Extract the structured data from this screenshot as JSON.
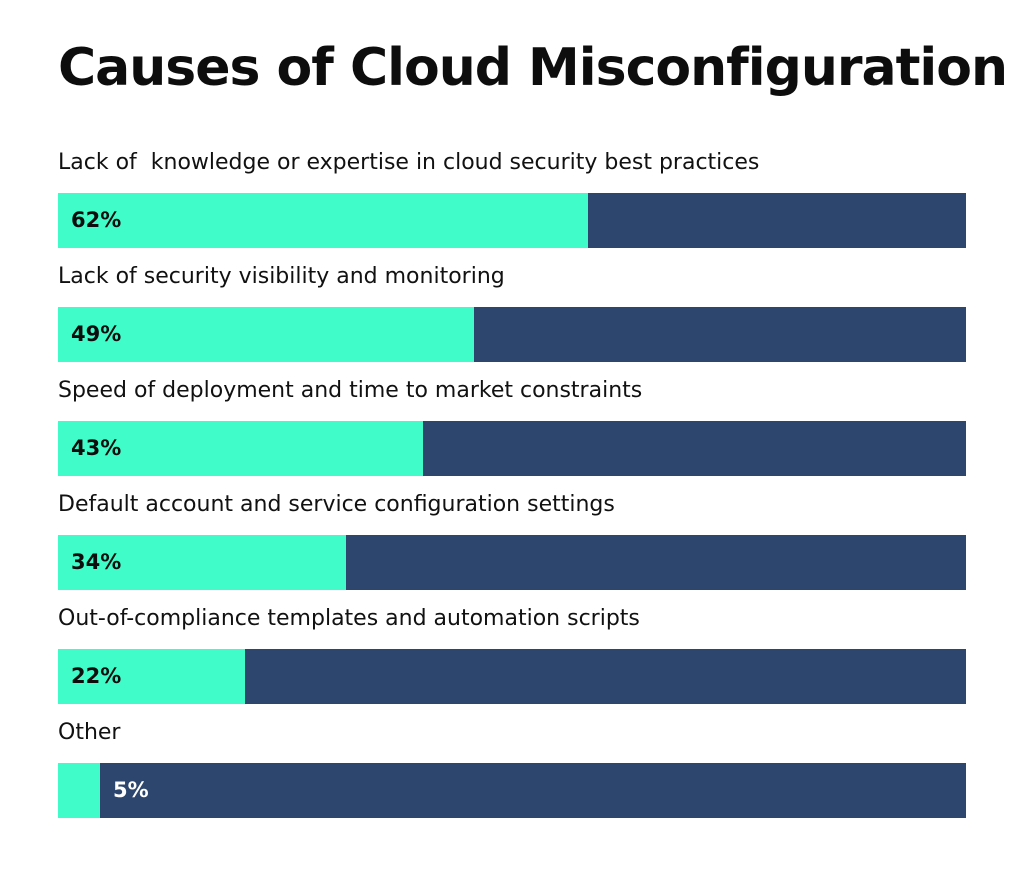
{
  "chart_data": {
    "type": "bar",
    "orientation": "horizontal",
    "title": "Causes of Cloud Misconfiguration",
    "categories": [
      "Lack of  knowledge or expertise in cloud security best practices",
      "Lack of security visibility and monitoring",
      "Speed of deployment and time to market constraints",
      "Default account and service configuration settings",
      "Out-of-compliance templates and automation scripts",
      "Other"
    ],
    "values": [
      62,
      49,
      43,
      34,
      22,
      5
    ],
    "value_labels": [
      "62%",
      "49%",
      "43%",
      "34%",
      "22%",
      "5%"
    ],
    "xlim": [
      0,
      100
    ],
    "unit": "%",
    "xlabel": "",
    "ylabel": "",
    "grid": false,
    "legend": "none"
  },
  "colors": {
    "fill": "#40fcc8",
    "track": "#2d466e",
    "label_on_fill": "#0d0d0d",
    "label_on_track": "#ffffff"
  }
}
